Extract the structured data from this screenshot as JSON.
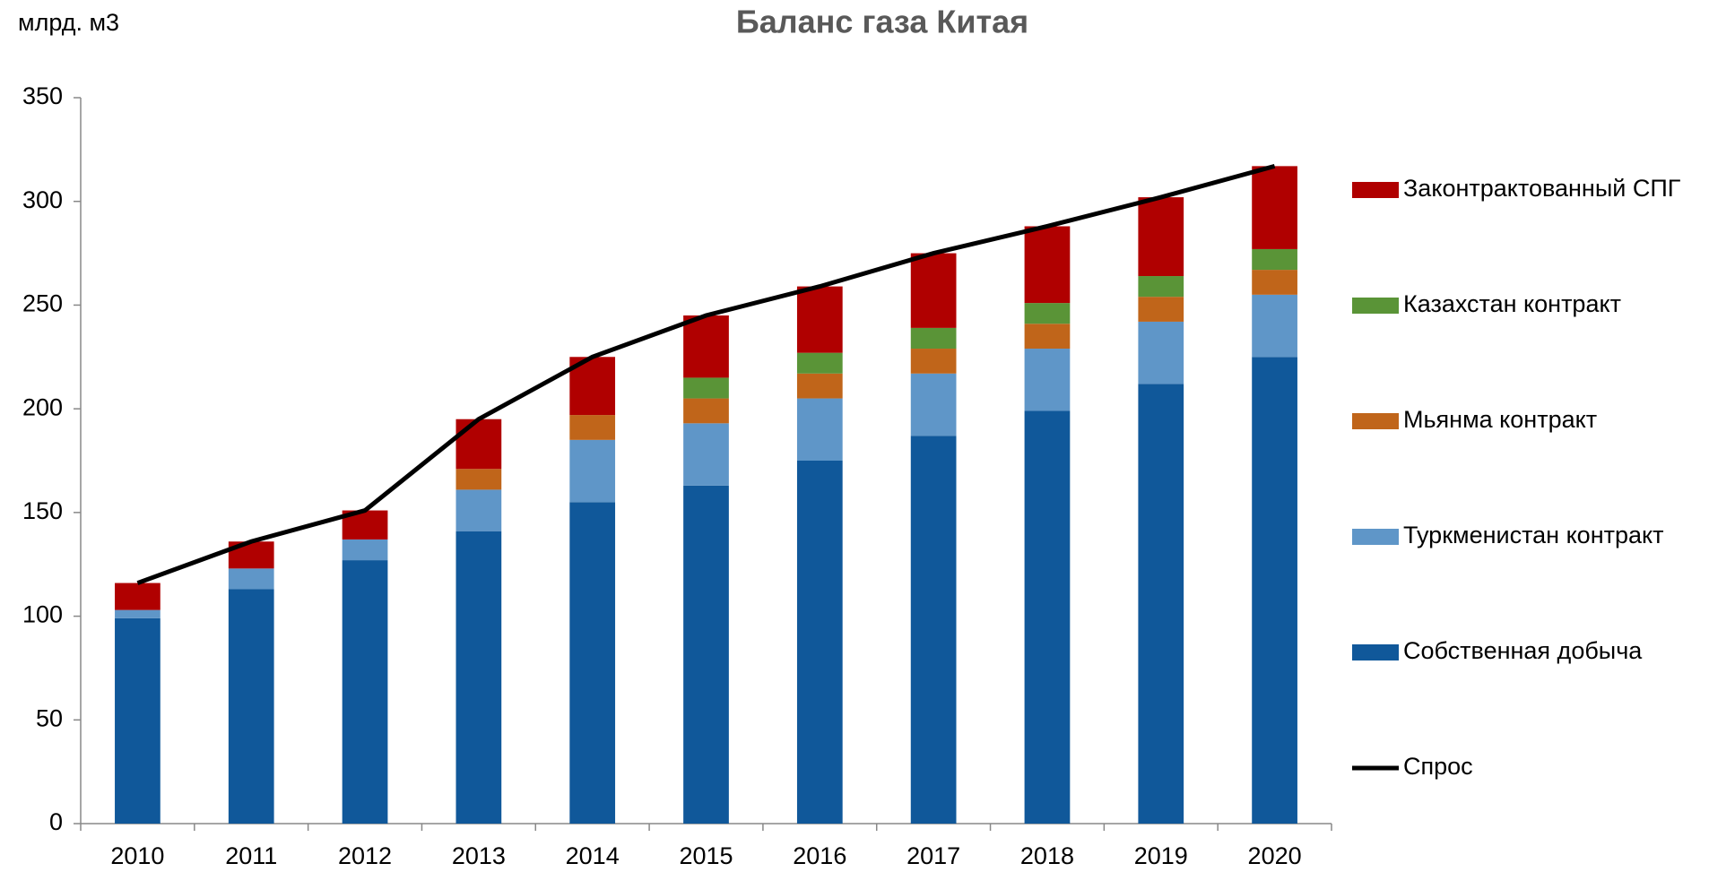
{
  "chart_data": {
    "type": "stacked-bar-line",
    "title": "Баланс газа Китая",
    "y_label": "млрд. м3",
    "categories": [
      "2010",
      "2011",
      "2012",
      "2013",
      "2014",
      "2015",
      "2016",
      "2017",
      "2018",
      "2019",
      "2020"
    ],
    "series": [
      {
        "name": "Собственная добыча",
        "color": "#10589a",
        "values": [
          99,
          113,
          127,
          141,
          155,
          163,
          175,
          187,
          199,
          212,
          225
        ]
      },
      {
        "name": "Туркменистан контракт",
        "color": "#5f96c8",
        "values": [
          4,
          10,
          10,
          20,
          30,
          30,
          30,
          30,
          30,
          30,
          30
        ]
      },
      {
        "name": "Мьянма контракт",
        "color": "#c0651a",
        "values": [
          0,
          0,
          0,
          10,
          12,
          12,
          12,
          12,
          12,
          12,
          12
        ]
      },
      {
        "name": "Казахстан контракт",
        "color": "#5a9437",
        "values": [
          0,
          0,
          0,
          0,
          0,
          10,
          10,
          10,
          10,
          10,
          10
        ]
      },
      {
        "name": "Законтрактованный СПГ",
        "color": "#b00000",
        "values": [
          13,
          13,
          14,
          24,
          28,
          30,
          32,
          36,
          37,
          38,
          40
        ]
      }
    ],
    "line": {
      "name": "Спрос",
      "color": "#000000",
      "values": [
        116,
        136,
        151,
        195,
        225,
        245,
        259,
        275,
        288,
        302,
        317
      ]
    },
    "ylim": [
      0,
      350
    ],
    "yticks": [
      0,
      50,
      100,
      150,
      200,
      250,
      300,
      350
    ],
    "grid": false,
    "legend": "right"
  }
}
